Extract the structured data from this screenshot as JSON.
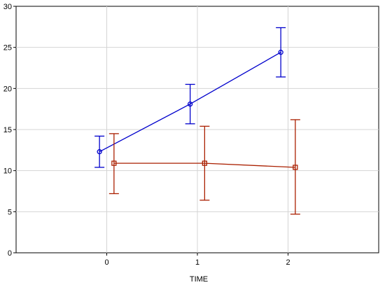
{
  "chart_data": {
    "type": "line",
    "title": "",
    "xlabel": "TIME",
    "ylabel": "",
    "x": [
      0,
      1,
      2
    ],
    "x_ticks": [
      "0",
      "1",
      "2"
    ],
    "y_ticks": [
      "0",
      "5",
      "10",
      "15",
      "20",
      "25",
      "30"
    ],
    "xlim": [
      -1,
      3
    ],
    "ylim": [
      0,
      30
    ],
    "grid": true,
    "series": [
      {
        "color": "#0000cc",
        "marker": "circle",
        "offset": -0.08,
        "values": [
          12.3,
          18.1,
          24.4
        ],
        "lower": [
          10.4,
          15.7,
          21.4
        ],
        "upper": [
          14.2,
          20.5,
          27.4
        ]
      },
      {
        "color": "#aa1f00",
        "marker": "square",
        "offset": 0.08,
        "values": [
          10.9,
          10.9,
          10.4
        ],
        "lower": [
          7.2,
          6.4,
          4.7
        ],
        "upper": [
          14.5,
          15.4,
          16.2
        ]
      }
    ]
  }
}
